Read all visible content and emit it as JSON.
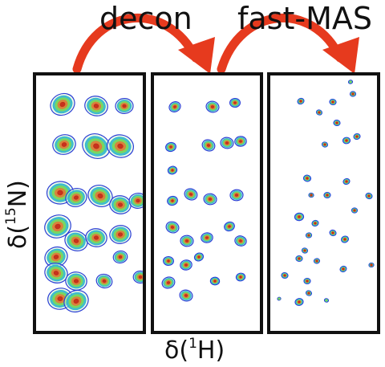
{
  "diagram": {
    "steps": [
      {
        "label": "decon"
      },
      {
        "label": "fast-MAS"
      }
    ],
    "x_axis_label": {
      "prefix": "δ(",
      "isotope_mass": "1",
      "isotope_symbol": "H",
      "suffix": ")"
    },
    "y_axis_label": {
      "prefix": "δ(",
      "isotope_mass": "15",
      "isotope_symbol": "N",
      "suffix": ")"
    },
    "panels": [
      {
        "name": "raw-spectrum",
        "contour_style": "broad"
      },
      {
        "name": "deconvolved-spectrum",
        "contour_style": "medium"
      },
      {
        "name": "fast-mas-spectrum",
        "contour_style": "sharp"
      }
    ],
    "colors": {
      "arrow": "#e63a1e",
      "frame": "#111111",
      "contour_outer": "#2a3fd6",
      "contour_mid": "#30b7c9",
      "contour_inner": "#7ed957",
      "contour_core": "#e07b3a",
      "contour_peak": "#c42a1a"
    }
  }
}
